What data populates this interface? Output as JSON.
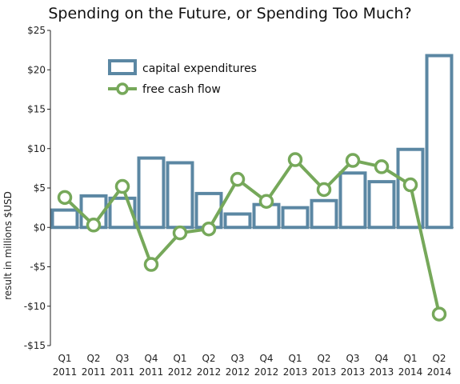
{
  "chart_data": {
    "type": "bar",
    "title": "Spending on the Future, or Spending Too Much?",
    "xlabel": "",
    "ylabel": "result in millions $USD",
    "ylim": [
      -15,
      25
    ],
    "yticks": [
      -15,
      -10,
      -5,
      0,
      5,
      10,
      15,
      20,
      25
    ],
    "ytick_labels": [
      "-$15",
      "-$10",
      "-$5",
      "$0",
      "$5",
      "$10",
      "$15",
      "$20",
      "$25"
    ],
    "grid": false,
    "legend_position": "top-left",
    "categories": [
      [
        "Q1",
        "2011"
      ],
      [
        "Q2",
        "2011"
      ],
      [
        "Q3",
        "2011"
      ],
      [
        "Q4",
        "2011"
      ],
      [
        "Q1",
        "2012"
      ],
      [
        "Q2",
        "2012"
      ],
      [
        "Q3",
        "2012"
      ],
      [
        "Q4",
        "2012"
      ],
      [
        "Q1",
        "2013"
      ],
      [
        "Q2",
        "2013"
      ],
      [
        "Q3",
        "2013"
      ],
      [
        "Q4",
        "2013"
      ],
      [
        "Q1",
        "2014"
      ],
      [
        "Q2",
        "2014"
      ]
    ],
    "series": [
      {
        "name": "capital expenditures",
        "type": "bar",
        "color": "#5b87a3",
        "values": [
          2.2,
          4.0,
          3.7,
          8.8,
          8.2,
          4.3,
          1.7,
          2.9,
          2.5,
          3.4,
          6.9,
          5.8,
          9.9,
          21.8
        ]
      },
      {
        "name": "free cash flow",
        "type": "line",
        "color": "#76a85a",
        "values": [
          3.8,
          0.3,
          5.2,
          -4.7,
          -0.7,
          -0.2,
          6.1,
          3.3,
          8.6,
          4.8,
          8.5,
          7.7,
          5.4,
          -11.0
        ]
      }
    ]
  }
}
